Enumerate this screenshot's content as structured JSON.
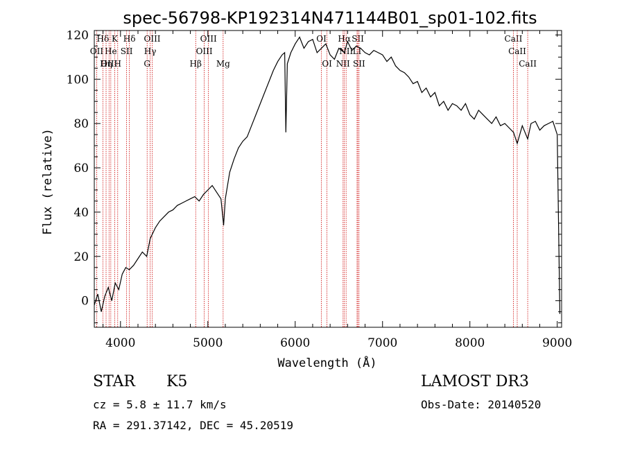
{
  "chart_data": {
    "type": "line",
    "title": "spec-56798-KP192314N471144B01_sp01-102.fits",
    "xlabel": "Wavelength (Å)",
    "ylabel": "Flux (relative)",
    "xlim": [
      3700,
      9050
    ],
    "ylim": [
      -12,
      122
    ],
    "xticks": [
      4000,
      5000,
      6000,
      7000,
      8000,
      9000
    ],
    "yticks": [
      0,
      20,
      40,
      60,
      80,
      100,
      120
    ],
    "grid": false,
    "line_color": "#000000",
    "marker_color": "#cc0000",
    "series": [
      {
        "x": [
          3700,
          3740,
          3780,
          3820,
          3860,
          3900,
          3940,
          3980,
          4020,
          4060,
          4100,
          4150,
          4200,
          4250,
          4300,
          4340,
          4400,
          4450,
          4500,
          4550,
          4600,
          4650,
          4700,
          4750,
          4800,
          4850,
          4900,
          4950,
          5000,
          5050,
          5100,
          5150,
          5180,
          5200,
          5250,
          5300,
          5350,
          5400,
          5450,
          5500,
          5550,
          5600,
          5650,
          5700,
          5750,
          5800,
          5850,
          5880,
          5893,
          5910,
          5950,
          6000,
          6050,
          6100,
          6150,
          6200,
          6250,
          6300,
          6350,
          6400,
          6450,
          6500,
          6563,
          6600,
          6650,
          6700,
          6750,
          6800,
          6850,
          6900,
          6950,
          7000,
          7050,
          7100,
          7150,
          7200,
          7250,
          7300,
          7350,
          7400,
          7450,
          7500,
          7550,
          7600,
          7650,
          7700,
          7750,
          7800,
          7850,
          7900,
          7950,
          8000,
          8050,
          8100,
          8150,
          8200,
          8250,
          8300,
          8350,
          8400,
          8450,
          8500,
          8542,
          8600,
          8662,
          8700,
          8750,
          8800,
          8850,
          8900,
          8950,
          9000,
          9030
        ],
        "y": [
          -2,
          3,
          -5,
          2,
          6,
          0,
          8,
          5,
          12,
          15,
          14,
          16,
          19,
          22,
          20,
          28,
          33,
          36,
          38,
          40,
          41,
          43,
          44,
          45,
          46,
          47,
          45,
          48,
          50,
          52,
          49,
          46,
          34,
          46,
          58,
          64,
          69,
          72,
          74,
          79,
          84,
          89,
          94,
          99,
          104,
          108,
          111,
          112,
          76,
          107,
          112,
          116,
          119,
          114,
          117,
          118,
          112,
          114,
          116,
          111,
          109,
          114,
          112,
          117,
          113,
          115,
          114,
          112,
          111,
          113,
          112,
          111,
          108,
          110,
          106,
          104,
          103,
          101,
          98,
          99,
          94,
          96,
          92,
          94,
          88,
          90,
          86,
          89,
          88,
          86,
          89,
          84,
          82,
          86,
          84,
          82,
          80,
          83,
          79,
          80,
          78,
          76,
          71,
          79,
          73,
          80,
          81,
          77,
          79,
          80,
          81,
          75,
          -6
        ]
      }
    ],
    "spectral_lines": [
      {
        "label": "Hδ",
        "x": 3798,
        "row": 1
      },
      {
        "label": "K",
        "x": 3934,
        "row": 1
      },
      {
        "label": "Hδ",
        "x": 4102,
        "row": 1
      },
      {
        "label": "OIII",
        "x": 4363,
        "row": 1
      },
      {
        "label": "OIII",
        "x": 5007,
        "row": 1
      },
      {
        "label": "OI",
        "x": 6300,
        "row": 1
      },
      {
        "label": "Hα",
        "x": 6563,
        "row": 1
      },
      {
        "label": "SII",
        "x": 6717,
        "row": 1
      },
      {
        "label": "CaII",
        "x": 8498,
        "row": 1
      },
      {
        "label": "OII",
        "x": 3727,
        "row": 2
      },
      {
        "label": "He",
        "x": 3889,
        "row": 2
      },
      {
        "label": "SII",
        "x": 4070,
        "row": 2
      },
      {
        "label": "Hγ",
        "x": 4340,
        "row": 2
      },
      {
        "label": "OIII",
        "x": 4959,
        "row": 2
      },
      {
        "label": "NII",
        "x": 6583,
        "row": 2
      },
      {
        "label": "LI",
        "x": 6708,
        "row": 2
      },
      {
        "label": "CaII",
        "x": 8542,
        "row": 2
      },
      {
        "label": "OIII",
        "x": 3869,
        "row": 3
      },
      {
        "label": "Hη",
        "x": 3835,
        "row": 3
      },
      {
        "label": "H",
        "x": 3968,
        "row": 3
      },
      {
        "label": "G",
        "x": 4305,
        "row": 3
      },
      {
        "label": "Hβ",
        "x": 4861,
        "row": 3
      },
      {
        "label": "Mg",
        "x": 5175,
        "row": 3
      },
      {
        "label": "OI",
        "x": 6364,
        "row": 3
      },
      {
        "label": "NII",
        "x": 6548,
        "row": 3
      },
      {
        "label": "SII",
        "x": 6731,
        "row": 3
      },
      {
        "label": "CaII",
        "x": 8662,
        "row": 3
      }
    ]
  },
  "info": {
    "class": "STAR",
    "subclass": "K5",
    "survey": "LAMOST DR3",
    "cz": "cz = 5.8 ± 11.7 km/s",
    "obs_date": "Obs-Date: 20140520",
    "coords": "RA = 291.37142, DEC =  45.20519"
  }
}
